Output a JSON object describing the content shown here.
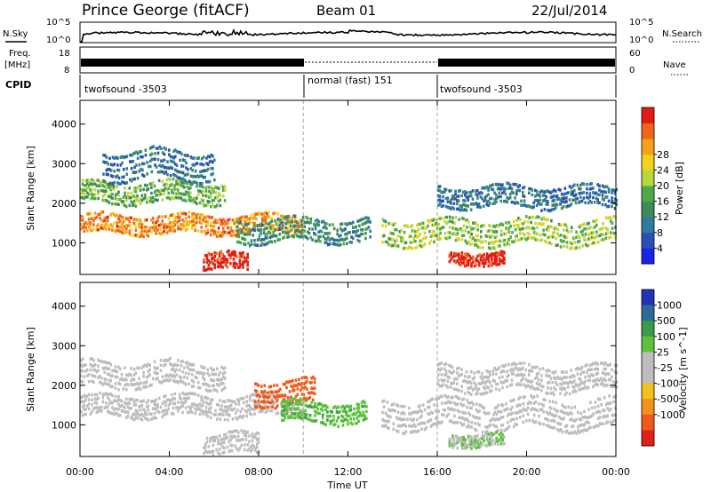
{
  "header": {
    "title": "Prince George (fitACF)",
    "beam": "Beam 01",
    "date": "22/Jul/2014"
  },
  "noise_panel": {
    "left_label": "N.Sky",
    "left_ticks": [
      "10^5",
      "10^0"
    ],
    "right_label": "N.Search",
    "right_ticks": [
      "10^5",
      "10^0"
    ]
  },
  "freq_panel": {
    "left_label": "Freq.",
    "left_unit": "[MHz]",
    "left_ticks": [
      "18",
      "8"
    ],
    "right_label": "Nave",
    "right_ticks": [
      "60",
      "0"
    ]
  },
  "cpid_panel": {
    "label": "CPID",
    "segments": [
      {
        "name": "twofsound -3503",
        "start_hour": 0,
        "end_hour": 10
      },
      {
        "name": "normal (fast) 151",
        "start_hour": 10,
        "end_hour": 16
      },
      {
        "name": "twofsound -3503",
        "start_hour": 16,
        "end_hour": 24
      }
    ]
  },
  "chart_data": [
    {
      "type": "heatmap",
      "name": "Power",
      "ylabel": "Slant Range [km]",
      "yticks": [
        1000,
        2000,
        3000,
        4000
      ],
      "ylim": [
        200,
        4600
      ],
      "xlim": [
        0,
        24
      ],
      "colorbar_label": "Power [dB]",
      "colorbar_ticks": [
        "4",
        "8",
        "12",
        "16",
        "20",
        "24",
        "28"
      ],
      "colorbar_colors": [
        "#1c22e6",
        "#2a4fb8",
        "#2f7aa0",
        "#3f8a5a",
        "#4fa94a",
        "#b9d63a",
        "#f2d21a",
        "#f5a219",
        "#f0651a",
        "#e01d12"
      ],
      "bands": [
        {
          "start_hour": 0.0,
          "end_hour": 10.0,
          "range_center_km": 1500,
          "half_width_km": 220,
          "power_db": 24
        },
        {
          "start_hour": 0.0,
          "end_hour": 6.5,
          "range_center_km": 2300,
          "half_width_km": 250,
          "power_db": 14
        },
        {
          "start_hour": 1.0,
          "end_hour": 6.0,
          "range_center_km": 3000,
          "half_width_km": 350,
          "power_db": 8
        },
        {
          "start_hour": 5.5,
          "end_hour": 7.5,
          "range_center_km": 550,
          "half_width_km": 200,
          "power_db": 30
        },
        {
          "start_hour": 7.0,
          "end_hour": 13.0,
          "range_center_km": 1350,
          "half_width_km": 280,
          "power_db": 10
        },
        {
          "start_hour": 13.5,
          "end_hour": 24.0,
          "range_center_km": 1300,
          "half_width_km": 300,
          "power_db": 16
        },
        {
          "start_hour": 16.5,
          "end_hour": 19.0,
          "range_center_km": 650,
          "half_width_km": 150,
          "power_db": 30
        },
        {
          "start_hour": 16.0,
          "end_hour": 24.0,
          "range_center_km": 2200,
          "half_width_km": 250,
          "power_db": 8
        }
      ]
    },
    {
      "type": "heatmap",
      "name": "Velocity",
      "ylabel": "Slant Range [km]",
      "yticks": [
        1000,
        2000,
        3000,
        4000
      ],
      "ylim": [
        200,
        4600
      ],
      "xlim": [
        0,
        24
      ],
      "xticks": [
        "00:00",
        "04:00",
        "08:00",
        "12:00",
        "16:00",
        "20:00",
        "00:00"
      ],
      "xlabel": "Time UT",
      "colorbar_label": "Velocity [m s^-1]",
      "colorbar_ticks": [
        "1000",
        "500",
        "100",
        "25",
        "-25",
        "-100",
        "-500",
        "-1000"
      ],
      "colorbar_colors": [
        "#2433b5",
        "#2c6a9a",
        "#3d9a4a",
        "#5bc23a",
        "#bdbdbd",
        "#bdbdbd",
        "#f2c21c",
        "#f3921a",
        "#ef5a1a",
        "#e0201a"
      ],
      "bands": [
        {
          "start_hour": 0.0,
          "end_hour": 10.0,
          "range_center_km": 1500,
          "half_width_km": 250,
          "velocity": 0
        },
        {
          "start_hour": 0.0,
          "end_hour": 6.5,
          "range_center_km": 2300,
          "half_width_km": 300,
          "velocity": 0
        },
        {
          "start_hour": 5.5,
          "end_hour": 8.0,
          "range_center_km": 550,
          "half_width_km": 250,
          "velocity": 0
        },
        {
          "start_hour": 7.8,
          "end_hour": 10.5,
          "range_center_km": 1850,
          "half_width_km": 300,
          "velocity": -500
        },
        {
          "start_hour": 9.0,
          "end_hour": 12.8,
          "range_center_km": 1350,
          "half_width_km": 250,
          "velocity": 150
        },
        {
          "start_hour": 13.5,
          "end_hour": 24.0,
          "range_center_km": 1300,
          "half_width_km": 350,
          "velocity": 0
        },
        {
          "start_hour": 16.0,
          "end_hour": 24.0,
          "range_center_km": 2200,
          "half_width_km": 300,
          "velocity": 0
        },
        {
          "start_hour": 16.5,
          "end_hour": 19.0,
          "range_center_km": 650,
          "half_width_km": 150,
          "velocity": 50
        }
      ]
    }
  ]
}
